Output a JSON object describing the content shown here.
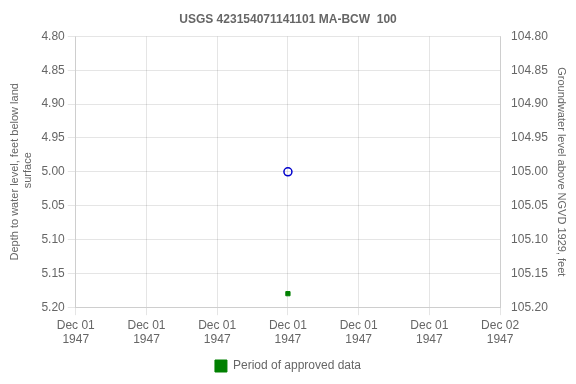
{
  "chart_data": {
    "type": "line",
    "title": "USGS 423154071141101 MA-BCW  100",
    "y_label": "Depth to water level, feet below land\n surface",
    "y2_label": "Groundwater level above NGVD 1929, feet",
    "categories": [
      "Dec 01\n1947",
      "Dec 01\n1947",
      "Dec 01\n1947",
      "Dec 01\n1947",
      "Dec 01\n1947",
      "Dec 01\n1947",
      "Dec 02\n1947"
    ],
    "series": [
      {
        "color": "#0000cc",
        "marker": "circle",
        "line_style": "none",
        "values": [
          null,
          null,
          null,
          5.0,
          null,
          null,
          null
        ]
      },
      {
        "name": "Period of approved data",
        "color": "#008000",
        "marker": "square",
        "line_style": "none",
        "values": [
          null,
          null,
          null,
          5.18,
          null,
          null,
          null
        ]
      }
    ],
    "ylim": [
      5.2,
      4.8
    ],
    "yticks": [
      {
        "value": 4.8,
        "label": "4.80"
      },
      4.85,
      {
        "value": 4.9,
        "label": "4.90"
      },
      4.95,
      {
        "value": 5.0,
        "label": "5.00"
      },
      5.05,
      {
        "value": 5.1,
        "label": "5.10"
      },
      5.15,
      {
        "value": 5.2,
        "label": "5.20"
      }
    ],
    "y2lim": [
      105.2,
      104.8
    ],
    "y2ticks": [
      {
        "value": 105.2,
        "label": "105.20"
      },
      105.15,
      {
        "value": 105.1,
        "label": "105.10"
      },
      105.05,
      {
        "value": 105.0,
        "label": "105.00"
      },
      104.95,
      {
        "value": 104.9,
        "label": "104.90"
      },
      104.85,
      {
        "value": 104.8,
        "label": "104.80"
      }
    ],
    "grid": true,
    "legend": "bottom"
  }
}
